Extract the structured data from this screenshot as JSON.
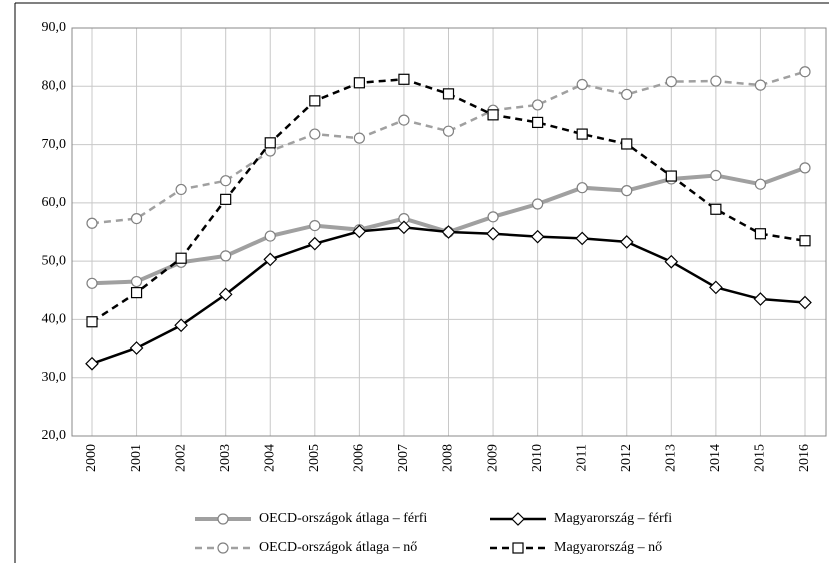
{
  "chart_data": {
    "type": "line",
    "categories": [
      "2000",
      "2001",
      "2002",
      "2003",
      "2004",
      "2005",
      "2006",
      "2007",
      "2008",
      "2009",
      "2010",
      "2011",
      "2012",
      "2013",
      "2014",
      "2015",
      "2016"
    ],
    "series": [
      {
        "name": "OECD-országok átlaga – férfi",
        "color": "#a0a0a0",
        "dashed": false,
        "marker": "circle",
        "values": [
          46.2,
          46.5,
          49.8,
          50.9,
          54.3,
          56.1,
          55.4,
          57.3,
          55.0,
          57.6,
          59.8,
          62.6,
          62.1,
          64.1,
          64.7,
          63.2,
          66.0
        ]
      },
      {
        "name": "Magyarország – férfi",
        "color": "#000000",
        "dashed": false,
        "marker": "diamond",
        "values": [
          32.4,
          35.1,
          39.0,
          44.3,
          50.3,
          53.0,
          55.1,
          55.8,
          55.0,
          54.7,
          54.2,
          53.9,
          53.3,
          49.9,
          45.5,
          43.5,
          42.9
        ]
      },
      {
        "name": "OECD-országok átlaga – nő",
        "color": "#a0a0a0",
        "dashed": true,
        "marker": "circle",
        "values": [
          56.5,
          57.3,
          62.3,
          63.8,
          68.9,
          71.8,
          71.1,
          74.2,
          72.3,
          75.9,
          76.8,
          80.3,
          78.6,
          80.8,
          80.9,
          80.2,
          82.5
        ]
      },
      {
        "name": "Magyarország – nő",
        "color": "#000000",
        "dashed": true,
        "marker": "square",
        "values": [
          39.6,
          44.6,
          50.5,
          60.6,
          70.3,
          77.5,
          80.6,
          81.2,
          78.7,
          75.1,
          73.8,
          71.8,
          70.1,
          64.6,
          58.9,
          54.7,
          53.5
        ]
      }
    ],
    "ylim": [
      20,
      90
    ],
    "yticks": [
      {
        "value": 20,
        "label": "20,0"
      },
      {
        "value": 30,
        "label": "30,0"
      },
      {
        "value": 40,
        "label": "40,0"
      },
      {
        "value": 50,
        "label": "50,0"
      },
      {
        "value": 60,
        "label": "60,0"
      },
      {
        "value": 70,
        "label": "70,0"
      },
      {
        "value": 80,
        "label": "80,0"
      },
      {
        "value": 90,
        "label": "90,0"
      }
    ],
    "grid": true
  }
}
